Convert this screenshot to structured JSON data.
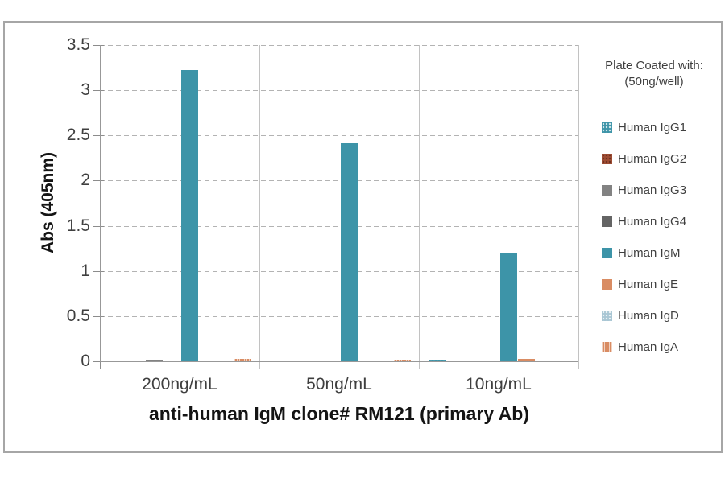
{
  "chart_data": {
    "type": "bar",
    "title": "anti-human IgM clone# RM121 (primary Ab)",
    "ylabel": "Abs (405nm)",
    "xlabel": "anti-human IgM clone# RM121 (primary Ab)",
    "categories": [
      "200ng/mL",
      "50ng/mL",
      "10ng/mL"
    ],
    "series": [
      {
        "name": "Human IgG1",
        "color": "#3d94a8",
        "pattern": "dots-light",
        "values": [
          0,
          0,
          0.02
        ]
      },
      {
        "name": "Human IgG2",
        "color": "#9e4c33",
        "pattern": "dots-dark",
        "values": [
          0,
          0,
          0
        ]
      },
      {
        "name": "Human IgG3",
        "color": "#828282",
        "pattern": "solid",
        "values": [
          0.02,
          0,
          0
        ]
      },
      {
        "name": "Human IgG4",
        "color": "#646464",
        "pattern": "solid",
        "values": [
          0,
          0,
          0
        ]
      },
      {
        "name": "Human IgM",
        "color": "#3d94a8",
        "pattern": "solid",
        "values": [
          3.22,
          2.41,
          1.2
        ]
      },
      {
        "name": "Human IgE",
        "color": "#d98c63",
        "pattern": "solid",
        "values": [
          0,
          0,
          0.03
        ]
      },
      {
        "name": "Human IgD",
        "color": "#a9c6d4",
        "pattern": "dots-light",
        "values": [
          0,
          0,
          0
        ]
      },
      {
        "name": "Human IgA",
        "color": "#d98c63",
        "pattern": "stripes",
        "values": [
          0.03,
          0.02,
          0
        ]
      }
    ],
    "ylim": [
      0,
      3.5
    ],
    "ytick_step": 0.5,
    "yticks": [
      "3.5",
      "3",
      "2.5",
      "2",
      "1.5",
      "1",
      "0.5",
      "0"
    ],
    "grid": "dashed horizontal gridlines",
    "legend_position": "right",
    "legend_title_line1": "Plate Coated with:",
    "legend_title_line2": "(50ng/well)",
    "colors": {
      "teal": "#3d94a8",
      "orange": "#d98c63",
      "gray": "#828282",
      "frame_border": "#a6a6a6",
      "axis": "#989898",
      "text": "#3f3f3f"
    }
  }
}
